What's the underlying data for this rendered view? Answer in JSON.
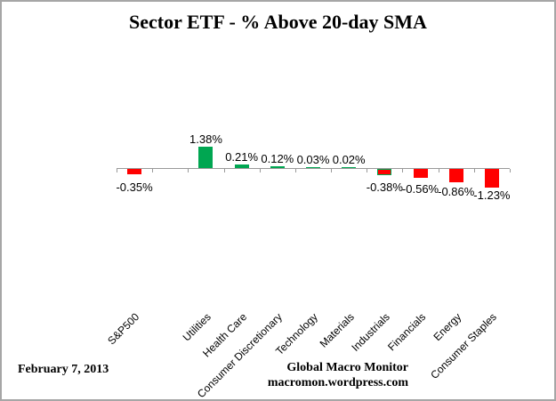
{
  "title": "Sector ETF - % Above 20-day SMA",
  "footer": {
    "date": "February 7, 2013",
    "brand_line1": "Global Macro Monitor",
    "brand_line2": "macromon.wordpress.com"
  },
  "colors": {
    "positive_bar": "#00A651",
    "negative_bar": "#FF0000",
    "industrials_bar_border": "#00A651",
    "axis": "#999999",
    "frame_border": "#A6A6A6"
  },
  "chart_data": {
    "type": "bar",
    "title": "Sector ETF - % Above 20-day SMA",
    "categories": [
      "S&P500",
      "Utilities",
      "Health Care",
      "Consumer Discretionary",
      "Technology",
      "Materials",
      "Industrials",
      "Financials",
      "Energy",
      "Consumer Staples"
    ],
    "values": [
      -0.35,
      1.38,
      0.21,
      0.12,
      0.03,
      0.02,
      -0.38,
      -0.56,
      -0.86,
      -1.23
    ],
    "data_labels": [
      "-0.35%",
      "1.38%",
      "0.21%",
      "0.12%",
      "0.03%",
      "0.02%",
      "-0.38%",
      "-0.56%",
      "-0.86%",
      "-1.23%"
    ],
    "unit": "%",
    "xlabel": "",
    "ylabel": "",
    "grid": false,
    "legend": false,
    "y_axis_labels_visible": false,
    "blank_spacer_between": [
      "S&P500",
      "Utilities"
    ],
    "category_label_rotation_deg": 45,
    "color_rule": "positive bars green, negative bars red; Industrials bar drawn red with green outline"
  }
}
